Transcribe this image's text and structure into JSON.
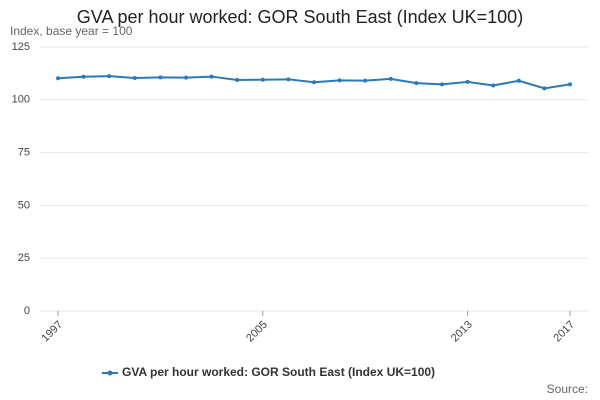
{
  "chart_data": {
    "type": "line",
    "title": "GVA per hour worked: GOR South East (Index UK=100)",
    "subtitle": "Index, base year = 100",
    "source": "Source:",
    "x": [
      1997,
      1998,
      1999,
      2000,
      2001,
      2002,
      2003,
      2004,
      2005,
      2006,
      2007,
      2008,
      2009,
      2010,
      2011,
      2012,
      2013,
      2014,
      2015,
      2016,
      2017
    ],
    "series": [
      {
        "name": "GVA per hour worked: GOR South East (Index UK=100)",
        "color": "#2a7ab9",
        "values": [
          110.2,
          110.9,
          111.2,
          110.3,
          110.6,
          110.5,
          111.0,
          109.4,
          109.5,
          109.7,
          108.3,
          109.2,
          109.1,
          109.9,
          107.9,
          107.3,
          108.5,
          106.8,
          109.0,
          105.4,
          107.3
        ]
      }
    ],
    "xlim": [
      1997,
      2017
    ],
    "xticks": [
      1997,
      2005,
      2013,
      2017
    ],
    "ylim": [
      0,
      125
    ],
    "yticks": [
      0,
      25,
      50,
      75,
      100,
      125
    ],
    "grid": true
  }
}
